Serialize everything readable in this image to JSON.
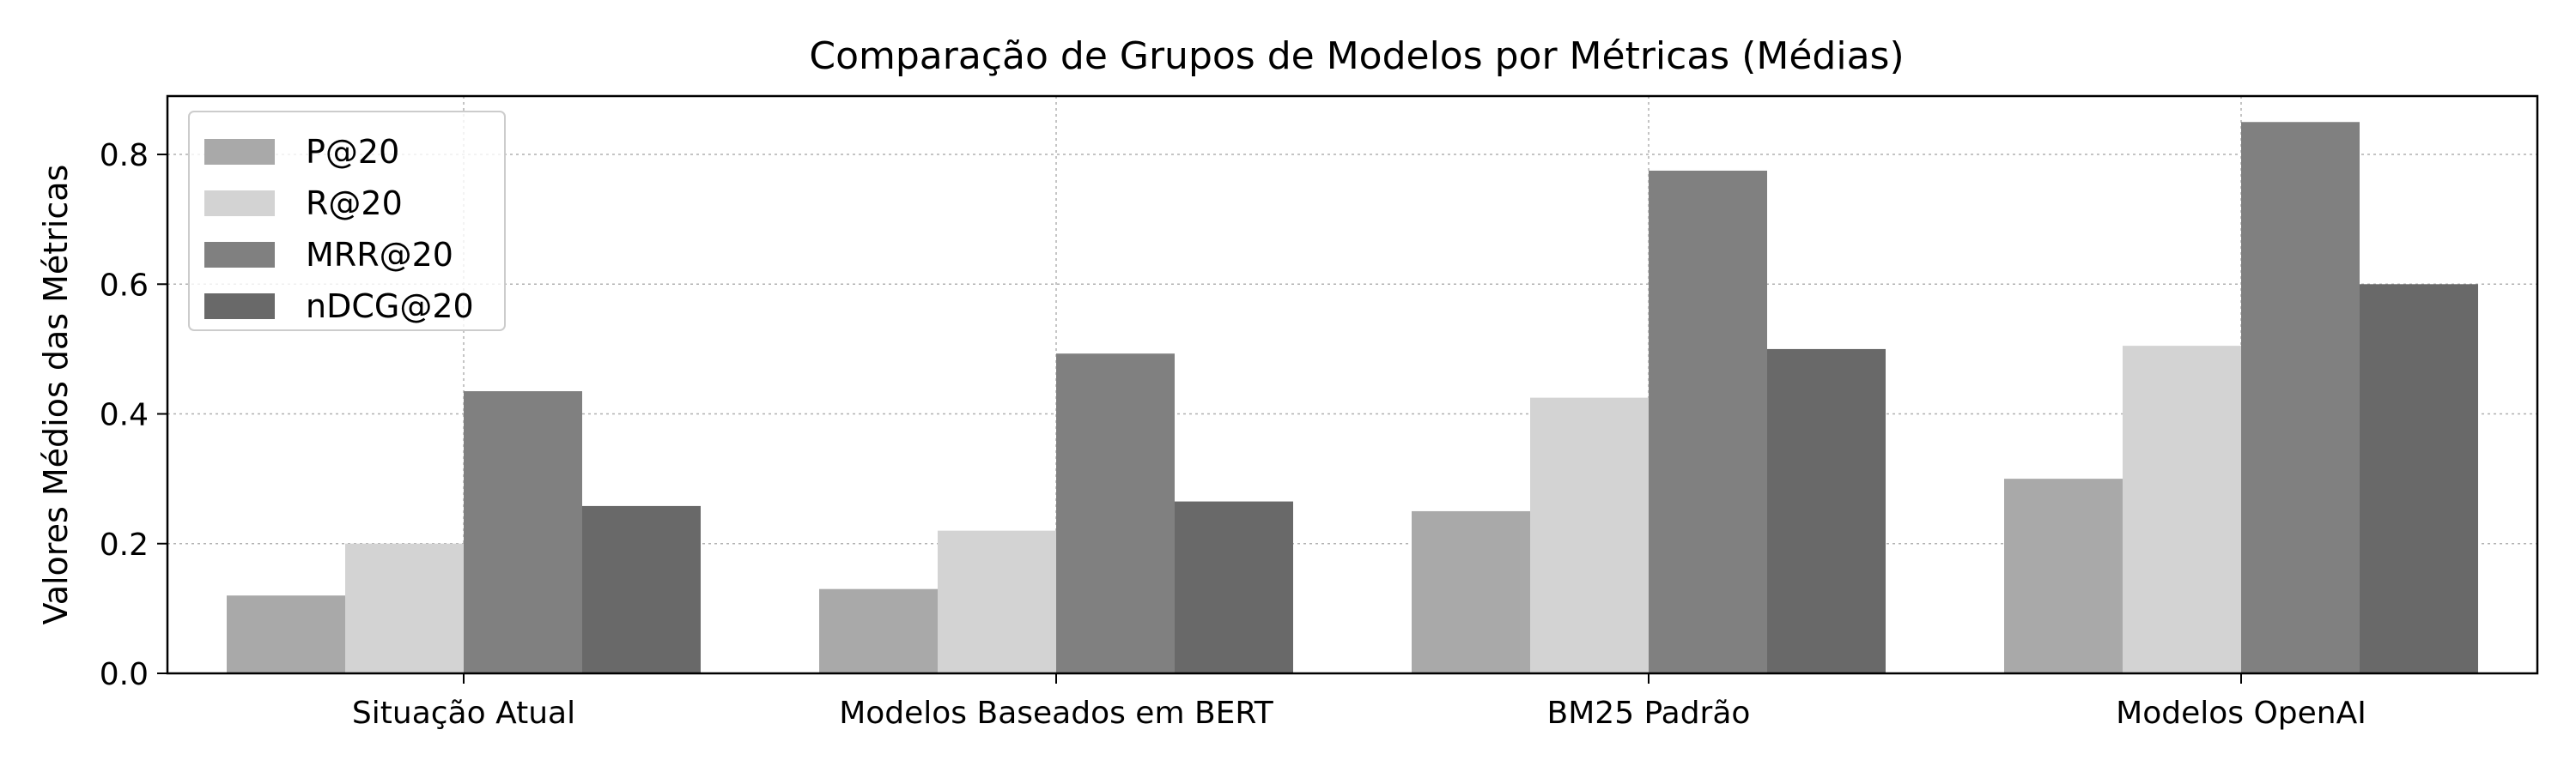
{
  "chart_data": {
    "type": "bar",
    "title": "Comparação de Grupos de Modelos por Métricas (Médias)",
    "xlabel": "",
    "ylabel": "Valores Médios das Métricas",
    "categories": [
      "Situação Atual",
      "Modelos Baseados em BERT",
      "BM25 Padrão",
      "Modelos OpenAI"
    ],
    "series": [
      {
        "name": "P@20",
        "color": "#a9a9a9",
        "values": [
          0.12,
          0.13,
          0.25,
          0.3
        ]
      },
      {
        "name": "R@20",
        "color": "#d3d3d3",
        "values": [
          0.2,
          0.22,
          0.425,
          0.505
        ]
      },
      {
        "name": "MRR@20",
        "color": "#808080",
        "values": [
          0.435,
          0.493,
          0.775,
          0.85
        ]
      },
      {
        "name": "nDCG@20",
        "color": "#696969",
        "values": [
          0.258,
          0.265,
          0.5,
          0.6
        ]
      }
    ],
    "ylim": [
      0,
      0.89
    ],
    "yticks": [
      "0.0",
      "0.2",
      "0.4",
      "0.6",
      "0.8"
    ],
    "grid": true,
    "legend_position": "top-left"
  }
}
